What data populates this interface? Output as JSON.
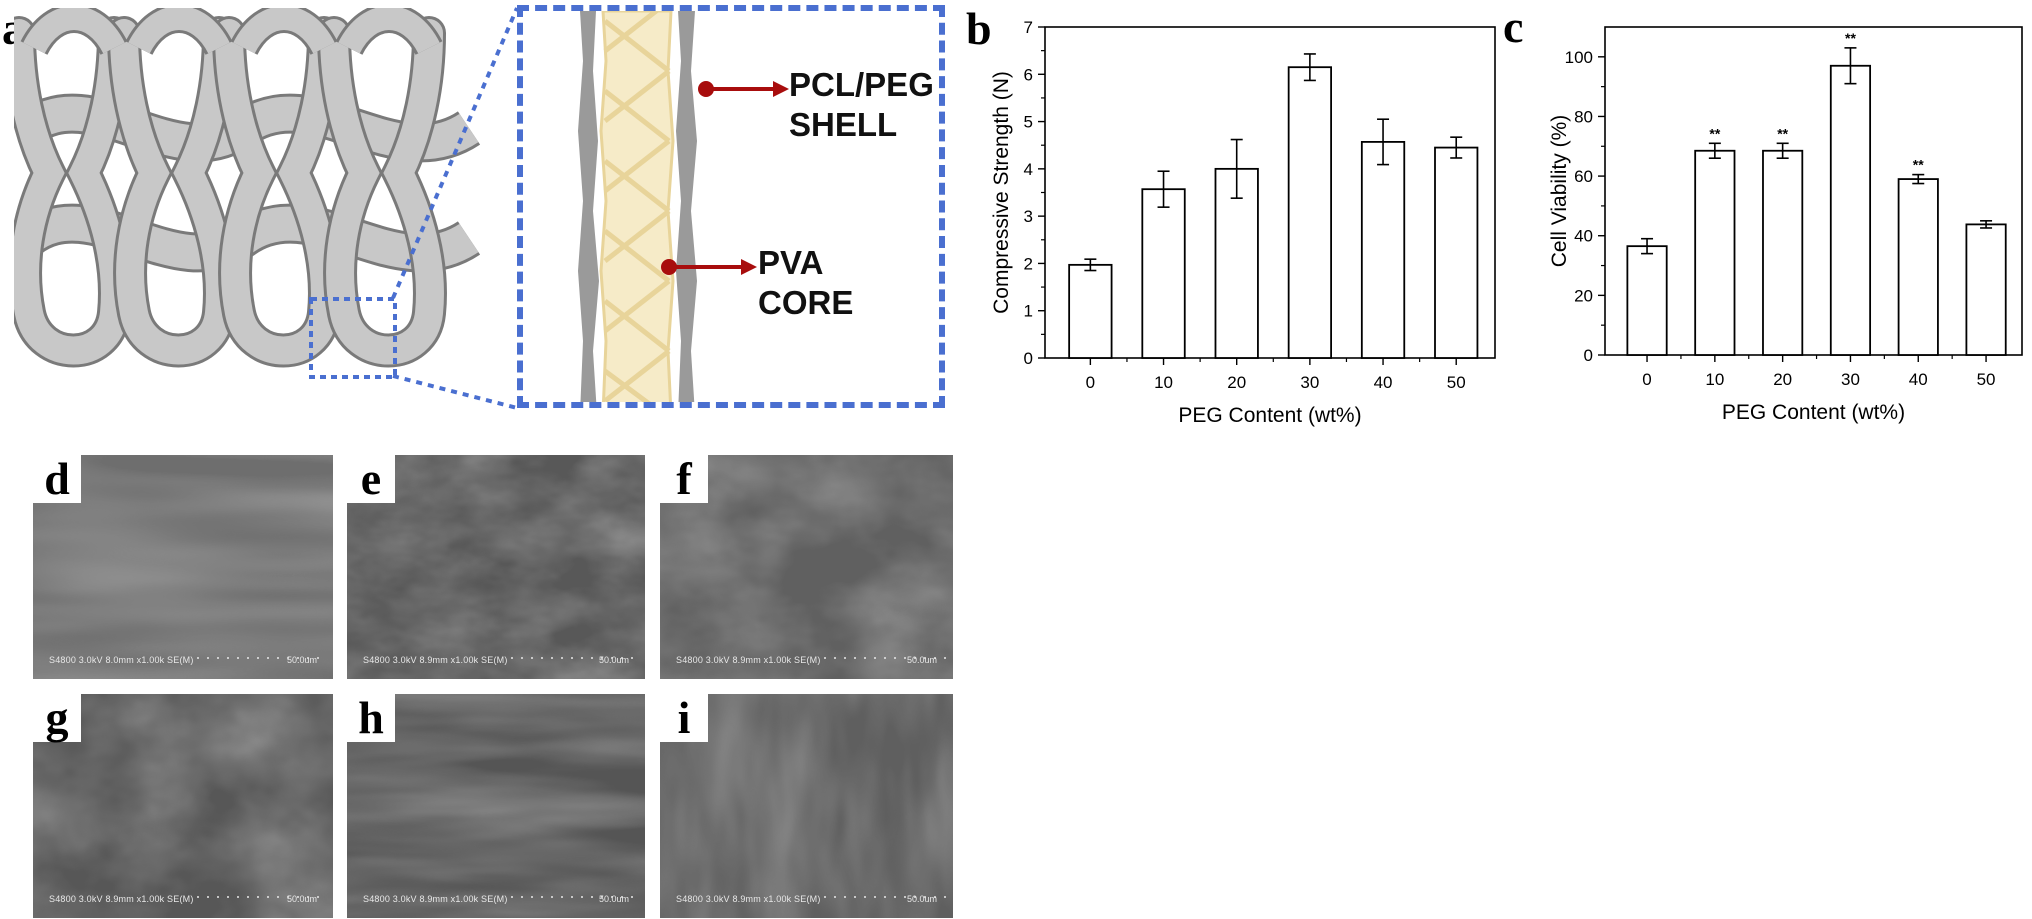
{
  "panel_a": {
    "letter": "a",
    "shell_label": "PCL/PEG\nSHELL",
    "core_label": "PVA\nCORE"
  },
  "panel_b": {
    "letter": "b"
  },
  "panel_c": {
    "letter": "c"
  },
  "chart_data": [
    {
      "type": "bar",
      "categories": [
        "0",
        "10",
        "20",
        "30",
        "40",
        "50"
      ],
      "values": [
        1.97,
        3.57,
        4.0,
        6.15,
        4.57,
        4.45
      ],
      "errors": [
        0.12,
        0.38,
        0.62,
        0.28,
        0.48,
        0.22
      ],
      "title": "",
      "xlabel": "PEG Content (wt%)",
      "ylabel": "Compressive Strength (N)",
      "ylim": [
        0,
        7
      ],
      "yticks": [
        "0",
        "1",
        "2",
        "3",
        "4",
        "5",
        "6",
        "7"
      ],
      "annotations": []
    },
    {
      "type": "bar",
      "categories": [
        "0",
        "10",
        "20",
        "30",
        "40",
        "50"
      ],
      "values": [
        36.5,
        68.5,
        68.5,
        97,
        59,
        43.8
      ],
      "errors": [
        2.5,
        2.5,
        2.5,
        6,
        1.5,
        1.2
      ],
      "title": "",
      "xlabel": "PEG Content (wt%)",
      "ylabel": "Cell Viability  (%)",
      "ylim": [
        0,
        110
      ],
      "yticks": [
        "0",
        "20",
        "40",
        "60",
        "80",
        "100"
      ],
      "annotations": [
        "",
        "**",
        "**",
        "**",
        "**",
        ""
      ]
    }
  ],
  "sem_panels": [
    {
      "letter": "d",
      "caption": "S4800 3.0kV 8.0mm x1.00k SE(M)",
      "scale": "50.0um"
    },
    {
      "letter": "e",
      "caption": "S4800 3.0kV 8.9mm x1.00k SE(M)",
      "scale": "50.0um"
    },
    {
      "letter": "f",
      "caption": "S4800 3.0kV 8.9mm x1.00k SE(M)",
      "scale": "50.0um"
    },
    {
      "letter": "g",
      "caption": "S4800 3.0kV 8.9mm x1.00k SE(M)",
      "scale": "50.0um"
    },
    {
      "letter": "h",
      "caption": "S4800 3.0kV 8.9mm x1.00k SE(M)",
      "scale": "50.0um"
    },
    {
      "letter": "i",
      "caption": "S4800 3.0kV 8.9mm x1.00k SE(M)",
      "scale": "50.0um"
    }
  ],
  "colors": {
    "fiber": "#c8c8c8",
    "fiber_edge": "#7a7a7a",
    "shell": "#9a9a9a",
    "core": "#f6ebc8",
    "core_line": "#e8d49a",
    "callout_border": "#4a6fd0",
    "arrow": "#a80d0d"
  }
}
